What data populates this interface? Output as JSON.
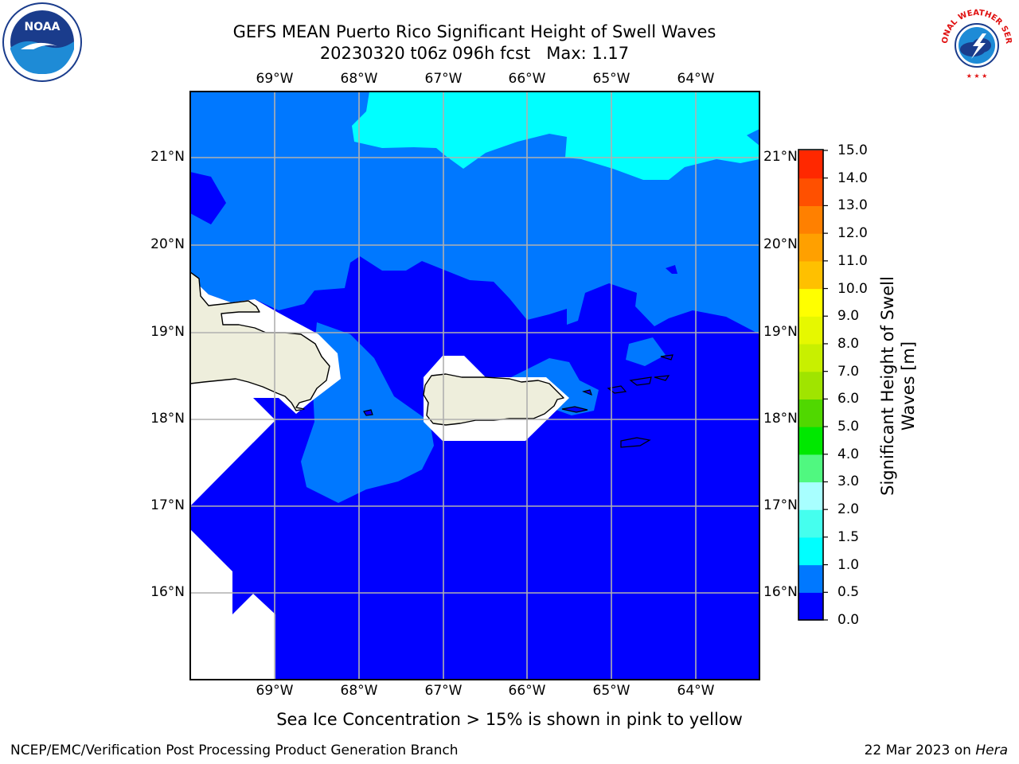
{
  "title": {
    "line1": "GEFS MEAN Puerto Rico Significant Height of Swell Waves",
    "line2": "20230320 t06z 096h fcst   Max: 1.17"
  },
  "logos": {
    "left": {
      "name": "noaa-logo",
      "text": "NOAA"
    },
    "right": {
      "name": "nws-logo",
      "text": "NATIONAL WEATHER SERVICE"
    }
  },
  "map": {
    "longitude_labels": [
      "69°W",
      "68°W",
      "67°W",
      "66°W",
      "65°W",
      "64°W"
    ],
    "latitude_labels": [
      "21°N",
      "20°N",
      "19°N",
      "18°N",
      "17°N",
      "16°N"
    ],
    "extent": {
      "lon": [
        -70.0,
        -63.25
      ],
      "lat": [
        15.0,
        21.75
      ]
    },
    "fill_colors": {
      "land": "#eeeedc",
      "no_data": "#ffffff",
      "range_0_0.5": "#0000ff",
      "range_0.5_1.0": "#0078ff",
      "range_1.0_1.5": "#00ffff"
    },
    "gridline_color": "#b0b0b0"
  },
  "colorbar": {
    "label": "Significant Height of Swell Waves [m]",
    "ticks": [
      "15.0",
      "14.0",
      "13.0",
      "12.0",
      "11.0",
      "10.0",
      "9.0",
      "8.0",
      "7.0",
      "6.0",
      "5.0",
      "4.0",
      "3.0",
      "2.0",
      "1.5",
      "1.0",
      "0.5",
      "0.0"
    ],
    "levels": [
      {
        "from": 0.0,
        "to": 0.5,
        "color": "#0000ff"
      },
      {
        "from": 0.5,
        "to": 1.0,
        "color": "#0078ff"
      },
      {
        "from": 1.0,
        "to": 1.5,
        "color": "#00ffff"
      },
      {
        "from": 1.5,
        "to": 2.0,
        "color": "#45ffee"
      },
      {
        "from": 2.0,
        "to": 3.0,
        "color": "#a8ffff"
      },
      {
        "from": 3.0,
        "to": 4.0,
        "color": "#50f880"
      },
      {
        "from": 4.0,
        "to": 5.0,
        "color": "#00e800"
      },
      {
        "from": 5.0,
        "to": 6.0,
        "color": "#50d800"
      },
      {
        "from": 6.0,
        "to": 7.0,
        "color": "#a0e400"
      },
      {
        "from": 7.0,
        "to": 8.0,
        "color": "#c8f000"
      },
      {
        "from": 8.0,
        "to": 9.0,
        "color": "#e6f800"
      },
      {
        "from": 9.0,
        "to": 10.0,
        "color": "#ffff00"
      },
      {
        "from": 10.0,
        "to": 11.0,
        "color": "#ffc000"
      },
      {
        "from": 11.0,
        "to": 12.0,
        "color": "#ffa000"
      },
      {
        "from": 12.0,
        "to": 13.0,
        "color": "#ff8000"
      },
      {
        "from": 13.0,
        "to": 14.0,
        "color": "#ff5000"
      },
      {
        "from": 14.0,
        "to": 15.0,
        "color": "#ff2800"
      },
      {
        "from": 15.0,
        "to": 15.0,
        "color": "#ff0000"
      }
    ]
  },
  "sea_ice_note": "Sea Ice Concentration > 15% is shown in pink to yellow",
  "footer": {
    "left": "NCEP/EMC/Verification Post Processing Product Generation Branch",
    "right_date": "22 Mar 2023 on ",
    "right_machine": "Hera"
  }
}
